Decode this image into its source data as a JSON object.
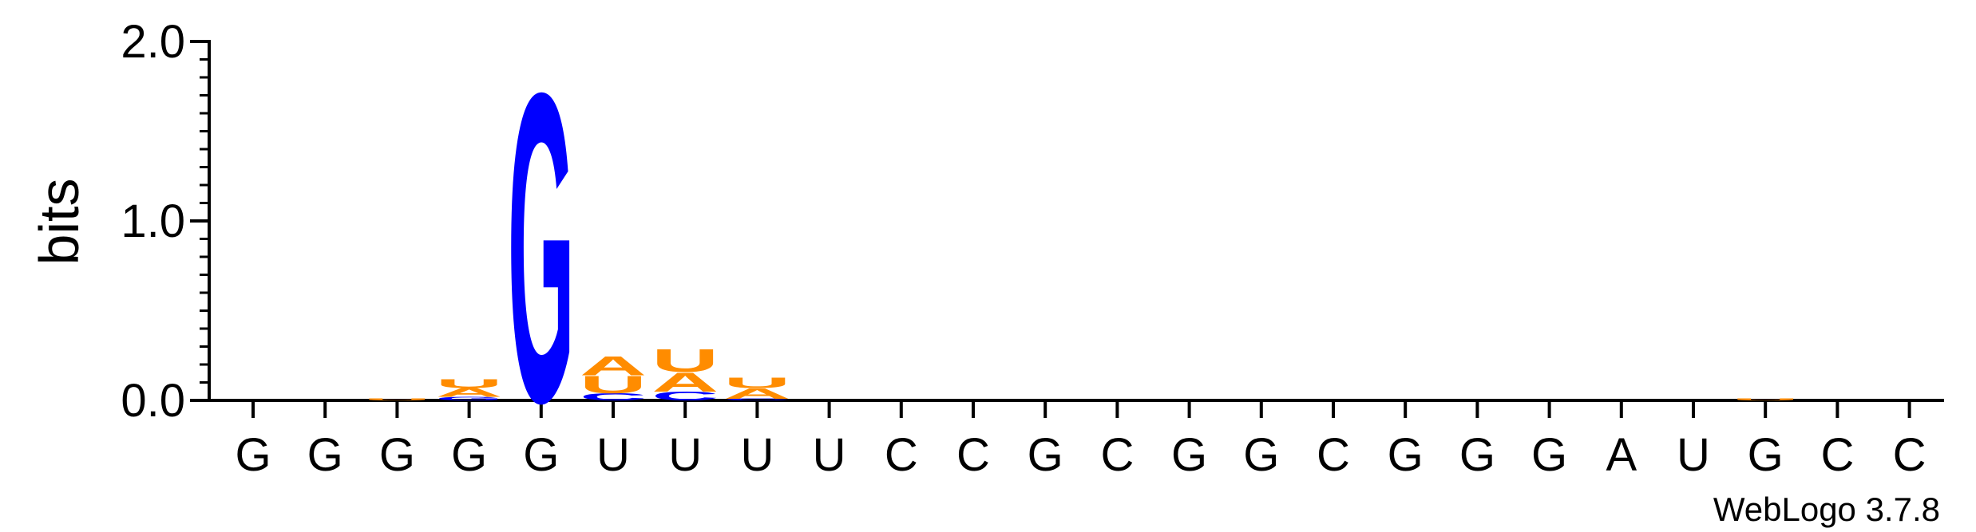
{
  "chart_data": {
    "type": "sequence-logo",
    "ylabel": "bits",
    "ylim": [
      0,
      2.0
    ],
    "yticks": [
      "0.0",
      "1.0",
      "2.0"
    ],
    "sequence": [
      "G",
      "G",
      "G",
      "G",
      "G",
      "U",
      "U",
      "U",
      "U",
      "C",
      "C",
      "G",
      "C",
      "G",
      "G",
      "C",
      "G",
      "G",
      "G",
      "A",
      "U",
      "G",
      "C",
      "C"
    ],
    "colors": {
      "G": "#0000ff",
      "C": "#0000ff",
      "A": "#ff8c00",
      "U": "#ff8c00"
    },
    "stacks": [
      [],
      [],
      [
        {
          "letter": "U",
          "bits": 0.01
        }
      ],
      [
        {
          "letter": "G",
          "bits": 0.02
        },
        {
          "letter": "A",
          "bits": 0.05
        },
        {
          "letter": "U",
          "bits": 0.05
        }
      ],
      [
        {
          "letter": "G",
          "bits": 1.77
        }
      ],
      [
        {
          "letter": "C",
          "bits": 0.04
        },
        {
          "letter": "U",
          "bits": 0.1
        },
        {
          "letter": "A",
          "bits": 0.11
        }
      ],
      [
        {
          "letter": "C",
          "bits": 0.05
        },
        {
          "letter": "A",
          "bits": 0.11
        },
        {
          "letter": "U",
          "bits": 0.13
        }
      ],
      [
        {
          "letter": "C",
          "bits": 0.01
        },
        {
          "letter": "A",
          "bits": 0.06
        },
        {
          "letter": "U",
          "bits": 0.06
        }
      ],
      [],
      [],
      [],
      [],
      [],
      [],
      [],
      [],
      [],
      [],
      [],
      [],
      [],
      [
        {
          "letter": "U",
          "bits": 0.01
        }
      ],
      [],
      []
    ]
  },
  "footer": "WebLogo 3.7.8"
}
